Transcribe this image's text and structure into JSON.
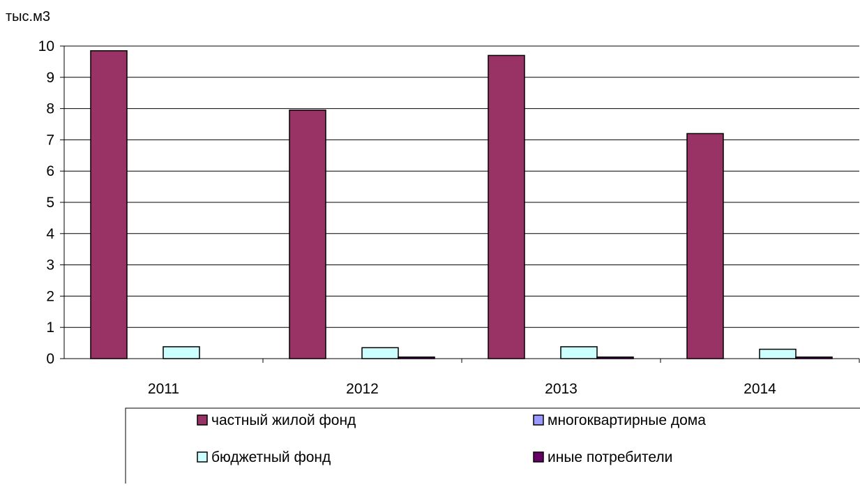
{
  "chart_data": {
    "type": "bar",
    "ylabel": "тыс.м3",
    "categories": [
      "2011",
      "2012",
      "2013",
      "2014"
    ],
    "ylim": [
      0,
      10
    ],
    "yticks": [
      0,
      1,
      2,
      3,
      4,
      5,
      6,
      7,
      8,
      9,
      10
    ],
    "grid": true,
    "legend_position": "bottom",
    "series": [
      {
        "name": "частный жилой фонд",
        "color": "#993366",
        "values": [
          9.85,
          7.95,
          9.7,
          7.2
        ]
      },
      {
        "name": "многоквартирные дома",
        "color": "#9999FF",
        "values": [
          0,
          0,
          0,
          0
        ]
      },
      {
        "name": "бюджетный фонд",
        "color": "#CCFFFF",
        "values": [
          0.38,
          0.35,
          0.38,
          0.3
        ]
      },
      {
        "name": "иные потребители",
        "color": "#660066",
        "values": [
          0,
          0.05,
          0.05,
          0.05
        ]
      }
    ]
  }
}
